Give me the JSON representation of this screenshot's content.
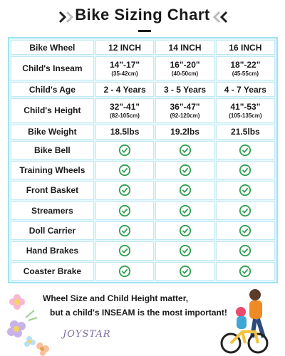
{
  "title": "Bike Sizing Chart",
  "colors": {
    "accent": "#9fe3f2",
    "check": "#2e9e4f"
  },
  "table": {
    "headers": [
      "Bike Wheel",
      "12 INCH",
      "14 INCH",
      "16 INCH"
    ],
    "rows": [
      {
        "label": "Child's Inseam",
        "values": [
          {
            "main": "14\"-17\"",
            "sub": "(35-42cm)"
          },
          {
            "main": "16\"-20\"",
            "sub": "(40-50cm)"
          },
          {
            "main": "18\"-22\"",
            "sub": "(45-55cm)"
          }
        ]
      },
      {
        "label": "Child's Age",
        "values": [
          {
            "main": "2 - 4 Years"
          },
          {
            "main": "3 - 5 Years"
          },
          {
            "main": "4 - 7 Years"
          }
        ]
      },
      {
        "label": "Child's Height",
        "values": [
          {
            "main": "32\"-41\"",
            "sub": "(82-105cm)"
          },
          {
            "main": "36\"-47\"",
            "sub": "(92-120cm)"
          },
          {
            "main": "41\"-53\"",
            "sub": "(105-135cm)"
          }
        ]
      },
      {
        "label": "Bike Weight",
        "values": [
          {
            "main": "18.5lbs"
          },
          {
            "main": "19.2lbs"
          },
          {
            "main": "21.5lbs"
          }
        ]
      },
      {
        "label": "Bike Bell",
        "check": true
      },
      {
        "label": "Training Wheels",
        "check": true
      },
      {
        "label": "Front Basket",
        "check": true
      },
      {
        "label": "Streamers",
        "check": true
      },
      {
        "label": "Doll Carrier",
        "check": true
      },
      {
        "label": "Hand Brakes",
        "check": true
      },
      {
        "label": "Coaster Brake",
        "check": true
      }
    ]
  },
  "note": {
    "line1": "Wheel Size and Child Height matter,",
    "line2": "but a child's INSEAM is the most important!"
  },
  "brand": "JOYSTAR",
  "icons": [
    "chevron-right-icon",
    "chevron-left-icon",
    "check-circle-icon",
    "flower-decoration-icon",
    "child-bike-illustration-icon"
  ]
}
